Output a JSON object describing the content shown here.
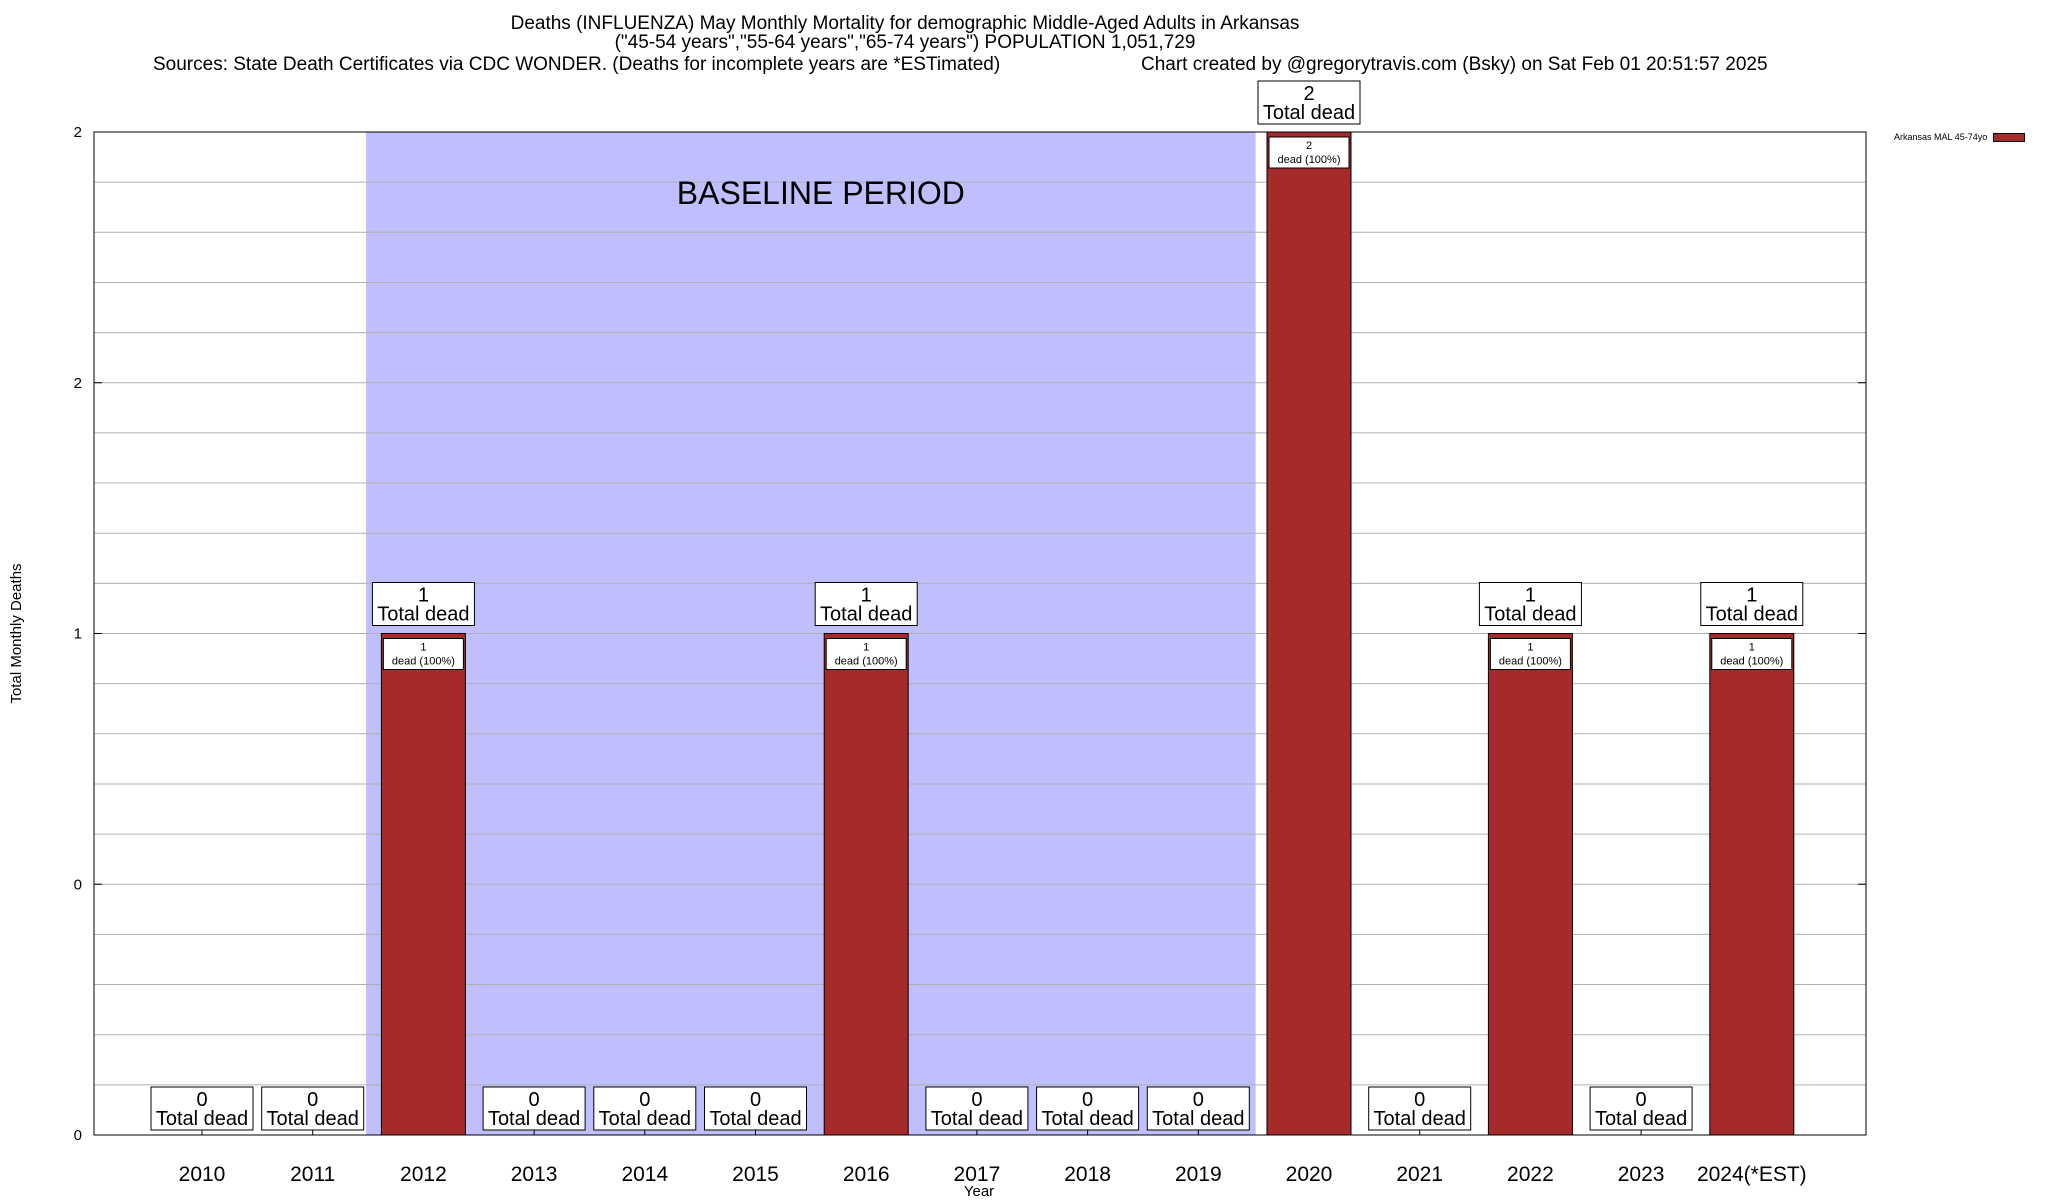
{
  "header": {
    "title": "Deaths (INFLUENZA) May Monthly Mortality for demographic Middle-Aged Adults in Arkansas",
    "subtitle": "(\"45-54 years\",\"55-64 years\",\"65-74 years\") POPULATION 1,051,729",
    "sources": "Sources: State Death Certificates via CDC WONDER. (Deaths for incomplete years are *ESTimated)",
    "credit": "Chart created by @gregorytravis.com (Bsky) on Sat Feb 01 20:51:57 2025"
  },
  "legend": {
    "label": "Arkansas MAL 45-74yo"
  },
  "colors": {
    "bar": "#a52a2a",
    "baseline_band": "#bfbffd",
    "grid": "#b0b0b0"
  },
  "chart_data": {
    "type": "bar",
    "xlabel": "Year",
    "ylabel": "Total Monthly Deaths",
    "categories": [
      "2010",
      "2011",
      "2012",
      "2013",
      "2014",
      "2015",
      "2016",
      "2017",
      "2018",
      "2019",
      "2020",
      "2021",
      "2022",
      "2023",
      "2024(*EST)"
    ],
    "series": [
      {
        "name": "Arkansas MAL 45-74yo",
        "values": [
          0,
          0,
          1,
          0,
          0,
          0,
          1,
          0,
          0,
          0,
          2,
          0,
          1,
          0,
          1
        ]
      }
    ],
    "ylim": [
      0,
      2
    ],
    "y_tick_labels": [
      "0",
      "0",
      "1",
      "2",
      "2"
    ],
    "total_label_suffix": "Total dead",
    "bar_label_suffix": "dead (100%)",
    "baseline": {
      "label": "BASELINE PERIOD",
      "from": "2012",
      "to": "2019"
    },
    "grid": true,
    "legend_position": "top-right"
  }
}
